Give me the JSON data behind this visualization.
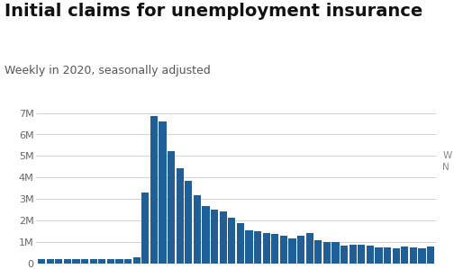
{
  "title": "Initial claims for unemployment insurance",
  "subtitle": "Weekly in 2020, seasonally adjusted",
  "bar_color": "#1d5f96",
  "background_color": "#ffffff",
  "ylim": [
    0,
    7500000
  ],
  "yticks": [
    0,
    1000000,
    2000000,
    3000000,
    4000000,
    5000000,
    6000000,
    7000000
  ],
  "ytick_labels": [
    "0",
    "1M",
    "2M",
    "3M",
    "4M",
    "5M",
    "6M",
    "7M"
  ],
  "values": [
    211000,
    211000,
    202000,
    211000,
    216000,
    211000,
    214000,
    216000,
    225000,
    215000,
    212000,
    282000,
    3307000,
    6867000,
    6615000,
    5211000,
    4442000,
    3846000,
    3176000,
    2687000,
    2520000,
    2446000,
    2123000,
    1887000,
    1537000,
    1508000,
    1427000,
    1370000,
    1297000,
    1186000,
    1307000,
    1435000,
    1104000,
    1011000,
    986000,
    857000,
    893000,
    866000,
    833000,
    751000,
    742000,
    711000,
    787000,
    748000,
    716000,
    803000
  ],
  "title_fontsize": 14,
  "subtitle_fontsize": 9,
  "tick_fontsize": 8,
  "title_color": "#111111",
  "subtitle_color": "#555555",
  "tick_color": "#666666",
  "grid_color": "#cccccc",
  "annotation": "W\nN",
  "annotation_color": "#888888"
}
